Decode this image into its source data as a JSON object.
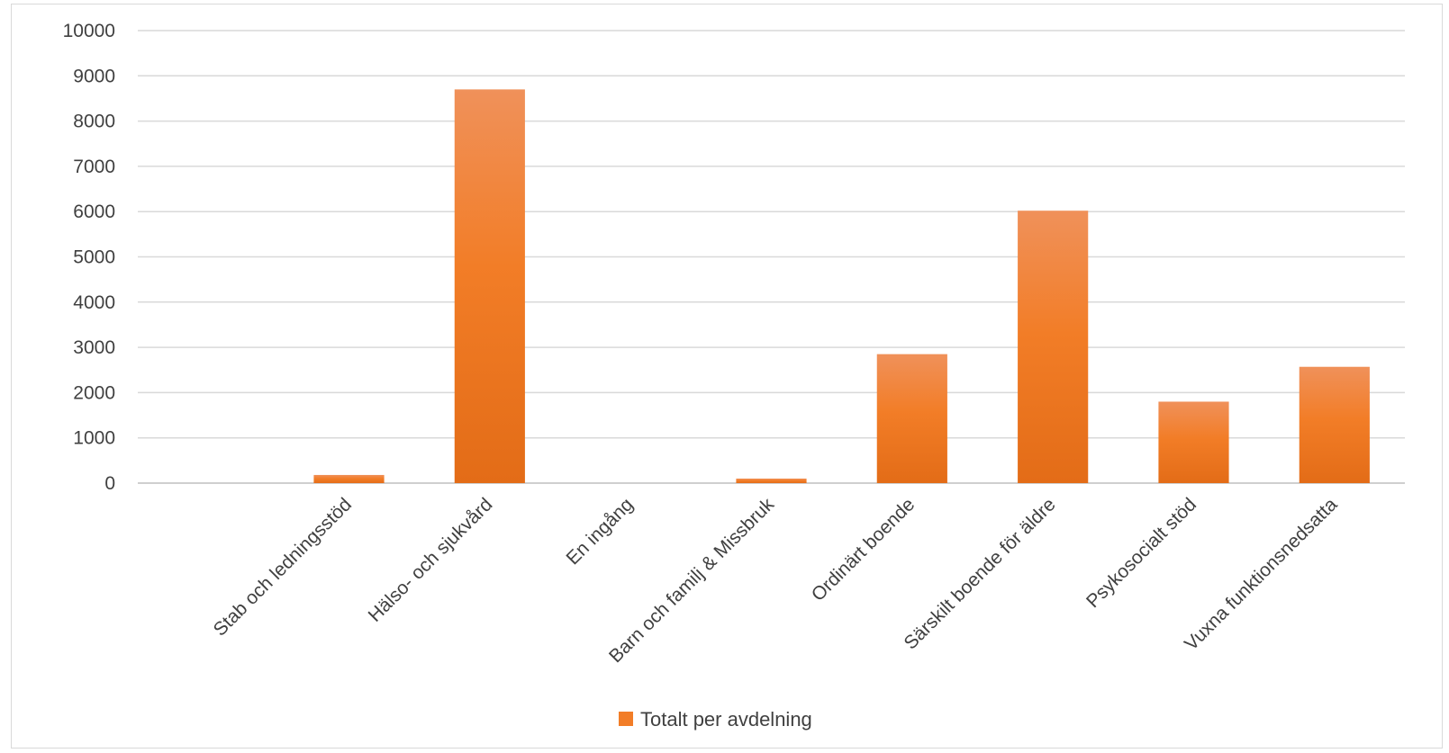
{
  "chart_data": {
    "type": "bar",
    "categories": [
      "",
      "Stab och ledningsstöd",
      "Hälso- och sjukvård",
      "En ingång",
      "Barn och familj & Missbruk",
      "Ordinärt boende",
      "Särskilt boende för äldre",
      "Psykosocialt stöd",
      "Vuxna funktionsnedsatta"
    ],
    "series": [
      {
        "name": "Totalt per avdelning",
        "values": [
          0,
          180,
          8700,
          0,
          100,
          2850,
          6020,
          1800,
          2570
        ]
      }
    ],
    "ylim": [
      0,
      10000
    ],
    "yticks": [
      0,
      1000,
      2000,
      3000,
      4000,
      5000,
      6000,
      7000,
      8000,
      9000,
      10000
    ],
    "grid": true,
    "legend_position": "bottom",
    "colors": {
      "bar_top": "#f0915a",
      "bar_mid": "#f27d27",
      "bar_bottom": "#e36c17",
      "grid": "#d9d9d9",
      "axis": "#bfbfbf"
    }
  }
}
